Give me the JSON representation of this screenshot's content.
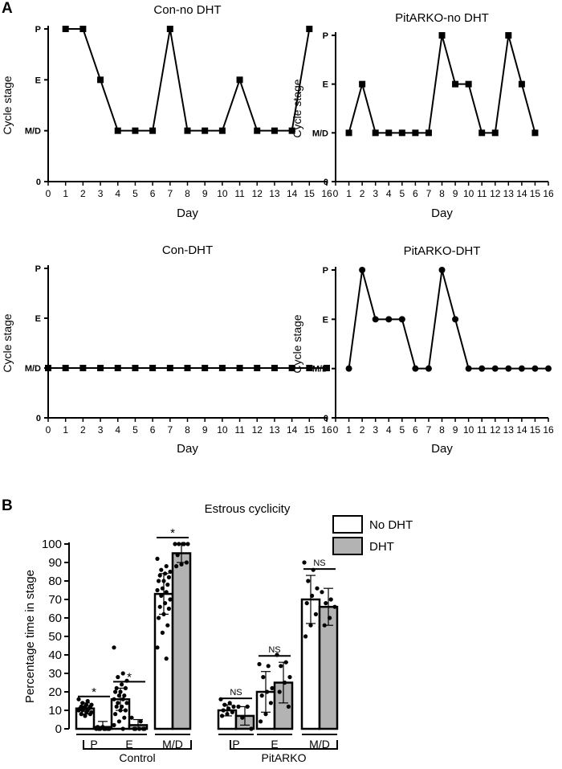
{
  "panel_labels": [
    "A",
    "B"
  ],
  "chart_data": [
    {
      "type": "line",
      "title": "Con-no DHT",
      "xlabel": "Day",
      "ylabel": "Cycle stage",
      "xlim": [
        0,
        16
      ],
      "x_ticks": [
        "0",
        "1",
        "2",
        "3",
        "4",
        "5",
        "6",
        "7",
        "8",
        "9",
        "10",
        "11",
        "12",
        "13",
        "14",
        "15",
        "16"
      ],
      "y_ticks": [
        {
          "value": 0,
          "label": "0"
        },
        {
          "value": 1,
          "label": "M/D"
        },
        {
          "value": 2,
          "label": "E"
        },
        {
          "value": 3,
          "label": "P"
        }
      ],
      "ylim": [
        0,
        3
      ],
      "marker": "square",
      "x": [
        1,
        2,
        3,
        4,
        5,
        6,
        7,
        8,
        9,
        10,
        11,
        12,
        13,
        14,
        15
      ],
      "y": [
        3,
        3,
        2,
        1,
        1,
        1,
        3,
        1,
        1,
        1,
        2,
        1,
        1,
        1,
        3
      ]
    },
    {
      "type": "line",
      "title": "PitARKO-no DHT",
      "xlabel": "Day",
      "ylabel": "Cycle stage",
      "xlim": [
        0,
        16
      ],
      "x_ticks": [
        "0",
        "1",
        "2",
        "3",
        "4",
        "5",
        "6",
        "7",
        "8",
        "9",
        "10",
        "11",
        "12",
        "13",
        "14",
        "15",
        "16"
      ],
      "y_ticks": [
        {
          "value": 0,
          "label": "0"
        },
        {
          "value": 1,
          "label": "M/D"
        },
        {
          "value": 2,
          "label": "E"
        },
        {
          "value": 3,
          "label": "P"
        }
      ],
      "ylim": [
        0,
        3
      ],
      "marker": "square",
      "x": [
        1,
        2,
        3,
        4,
        5,
        6,
        7,
        8,
        9,
        10,
        11,
        12,
        13,
        14,
        15
      ],
      "y": [
        1,
        2,
        1,
        1,
        1,
        1,
        1,
        3,
        2,
        2,
        1,
        1,
        3,
        2,
        1
      ]
    },
    {
      "type": "line",
      "title": "Con-DHT",
      "xlabel": "Day",
      "ylabel": "Cycle stage",
      "xlim": [
        0,
        16
      ],
      "x_ticks": [
        "0",
        "1",
        "2",
        "3",
        "4",
        "5",
        "6",
        "7",
        "8",
        "9",
        "10",
        "11",
        "12",
        "13",
        "14",
        "15",
        "16"
      ],
      "y_ticks": [
        {
          "value": 0,
          "label": "0"
        },
        {
          "value": 1,
          "label": "M/D"
        },
        {
          "value": 2,
          "label": "E"
        },
        {
          "value": 3,
          "label": "P"
        }
      ],
      "ylim": [
        0,
        3
      ],
      "marker": "square",
      "x": [
        0,
        1,
        2,
        3,
        4,
        5,
        6,
        7,
        8,
        9,
        10,
        11,
        12,
        13,
        14,
        15,
        16
      ],
      "y": [
        1,
        1,
        1,
        1,
        1,
        1,
        1,
        1,
        1,
        1,
        1,
        1,
        1,
        1,
        1,
        1,
        1
      ]
    },
    {
      "type": "line",
      "title": "PitARKO-DHT",
      "xlabel": "Day",
      "ylabel": "Cycle stage",
      "xlim": [
        0,
        16
      ],
      "x_ticks": [
        "0",
        "1",
        "2",
        "3",
        "4",
        "5",
        "6",
        "7",
        "8",
        "9",
        "10",
        "11",
        "12",
        "13",
        "14",
        "15",
        "16"
      ],
      "y_ticks": [
        {
          "value": 0,
          "label": "0"
        },
        {
          "value": 1,
          "label": "M/D"
        },
        {
          "value": 2,
          "label": "E"
        },
        {
          "value": 3,
          "label": "P"
        }
      ],
      "ylim": [
        0,
        3
      ],
      "marker": "circle",
      "x": [
        1,
        2,
        3,
        4,
        5,
        6,
        7,
        8,
        9,
        10,
        11,
        12,
        13,
        14,
        15,
        16
      ],
      "y": [
        1,
        3,
        2,
        2,
        2,
        1,
        1,
        3,
        2,
        1,
        1,
        1,
        1,
        1,
        1,
        1
      ]
    },
    {
      "type": "bar",
      "title": "Estrous cyclicity",
      "ylabel": "Percentage time in stage",
      "ylim": [
        0,
        100
      ],
      "y_ticks": [
        "0",
        "10",
        "20",
        "30",
        "40",
        "50",
        "60",
        "70",
        "80",
        "90",
        "100"
      ],
      "legend": {
        "position": "top-right",
        "entries": [
          {
            "label": "No DHT",
            "color": "#ffffff"
          },
          {
            "label": "DHT",
            "color": "#b3b3b3"
          }
        ]
      },
      "groups": [
        {
          "label": "Control",
          "categories": [
            "P",
            "E",
            "M/D"
          ],
          "no_dht": [
            11,
            16,
            73
          ],
          "no_dht_sd": [
            3,
            6,
            11
          ],
          "dht": [
            1,
            2,
            95
          ],
          "dht_sd": [
            3,
            3,
            5
          ],
          "significance": [
            "*",
            "*",
            "*"
          ]
        },
        {
          "label": "PitARKO",
          "categories": [
            "P",
            "E",
            "M/D"
          ],
          "no_dht": [
            10,
            20,
            70
          ],
          "no_dht_sd": [
            3,
            11,
            13
          ],
          "dht": [
            7,
            25,
            66
          ],
          "dht_sd": [
            5,
            11,
            10
          ],
          "significance": [
            "NS",
            "NS",
            "NS"
          ]
        }
      ],
      "points": {
        "control_p_no_dht": [
          16,
          15,
          14,
          13,
          13,
          12,
          12,
          12,
          11,
          11,
          11,
          10,
          10,
          10,
          9,
          9,
          8,
          8,
          7
        ],
        "control_p_dht": [
          0,
          0,
          0,
          0,
          0,
          0,
          0,
          1,
          1
        ],
        "control_e_no_dht": [
          44,
          30,
          28,
          26,
          24,
          22,
          22,
          20,
          20,
          18,
          18,
          16,
          16,
          14,
          14,
          12,
          12,
          10,
          10,
          8,
          6,
          4,
          2,
          0
        ],
        "control_e_dht": [
          6,
          4,
          0,
          0,
          0,
          0,
          0
        ],
        "control_md_no_dht": [
          92,
          88,
          86,
          85,
          84,
          83,
          82,
          80,
          80,
          78,
          76,
          75,
          74,
          72,
          70,
          68,
          66,
          65,
          62,
          60,
          56,
          52,
          44,
          38
        ],
        "control_md_dht": [
          100,
          100,
          100,
          100,
          100,
          94,
          90,
          89,
          88
        ],
        "pitarko_p_no_dht": [
          16,
          14,
          13,
          12,
          11,
          10,
          9,
          8,
          7
        ],
        "pitarko_p_dht": [
          12,
          12,
          6,
          0
        ],
        "pitarko_e_no_dht": [
          35,
          34,
          28,
          22,
          20,
          18,
          14,
          8,
          4
        ],
        "pitarko_e_dht": [
          40,
          36,
          34,
          28,
          25,
          20,
          12
        ],
        "pitarko_md_no_dht": [
          90,
          86,
          80,
          76,
          72,
          68,
          62,
          56,
          50
        ],
        "pitarko_md_dht": [
          74,
          70,
          68,
          66,
          60,
          56
        ]
      }
    }
  ]
}
